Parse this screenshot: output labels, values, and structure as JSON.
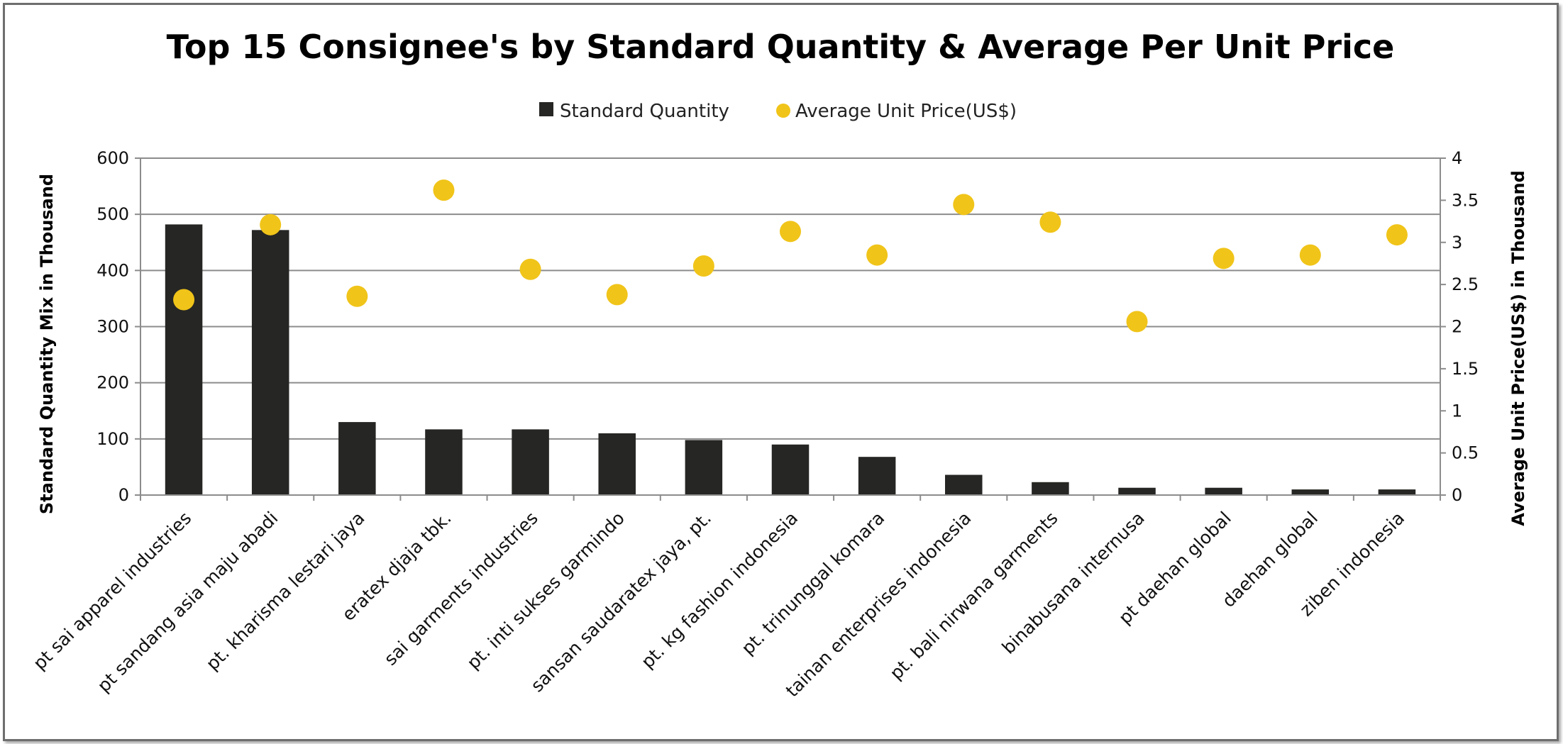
{
  "chart_data": {
    "type": "bar",
    "title": "Top 15 Consignee's by Standard Quantity & Average Per Unit Price",
    "ylabel": "Standard Quantity Mix in Thousand",
    "y2label": "Average Unit Price(US$) in Thousand",
    "ylim": [
      0,
      600
    ],
    "y2lim": [
      0,
      4
    ],
    "yticks": [
      "0",
      "100",
      "200",
      "300",
      "400",
      "500",
      "600"
    ],
    "y2ticks": [
      "0",
      "0.5",
      "1",
      "1.5",
      "2",
      "2.5",
      "3",
      "3.5",
      "4"
    ],
    "grid": true,
    "legend_position": "top",
    "categories": [
      "pt sai apparel industries",
      "pt sandang asia maju abadi",
      "pt. kharisma lestari jaya",
      "eratex djaja tbk.",
      "sai garments industries",
      "pt. inti sukses garmindo",
      "sansan saudaratex jaya, pt.",
      "pt. kg fashion indonesia",
      "pt. trinunggal komara",
      "tainan enterprises indonesia",
      "pt. bali nirwana garments",
      "binabusana internusa",
      "pt daehan global",
      "daehan global",
      "ziben indonesia"
    ],
    "series": [
      {
        "name": "Standard Quantity",
        "type": "bar",
        "axis": "left",
        "color": "#262624",
        "values": [
          482,
          472,
          130,
          117,
          117,
          110,
          98,
          90,
          68,
          36,
          23,
          13,
          13,
          10,
          10
        ]
      },
      {
        "name": "Average Unit Price(US$)",
        "type": "scatter",
        "axis": "right",
        "color": "#f0c419",
        "values": [
          2.32,
          3.21,
          2.36,
          3.62,
          2.68,
          2.38,
          2.72,
          3.13,
          2.85,
          3.45,
          3.24,
          2.06,
          2.81,
          2.85,
          3.09
        ]
      }
    ]
  }
}
